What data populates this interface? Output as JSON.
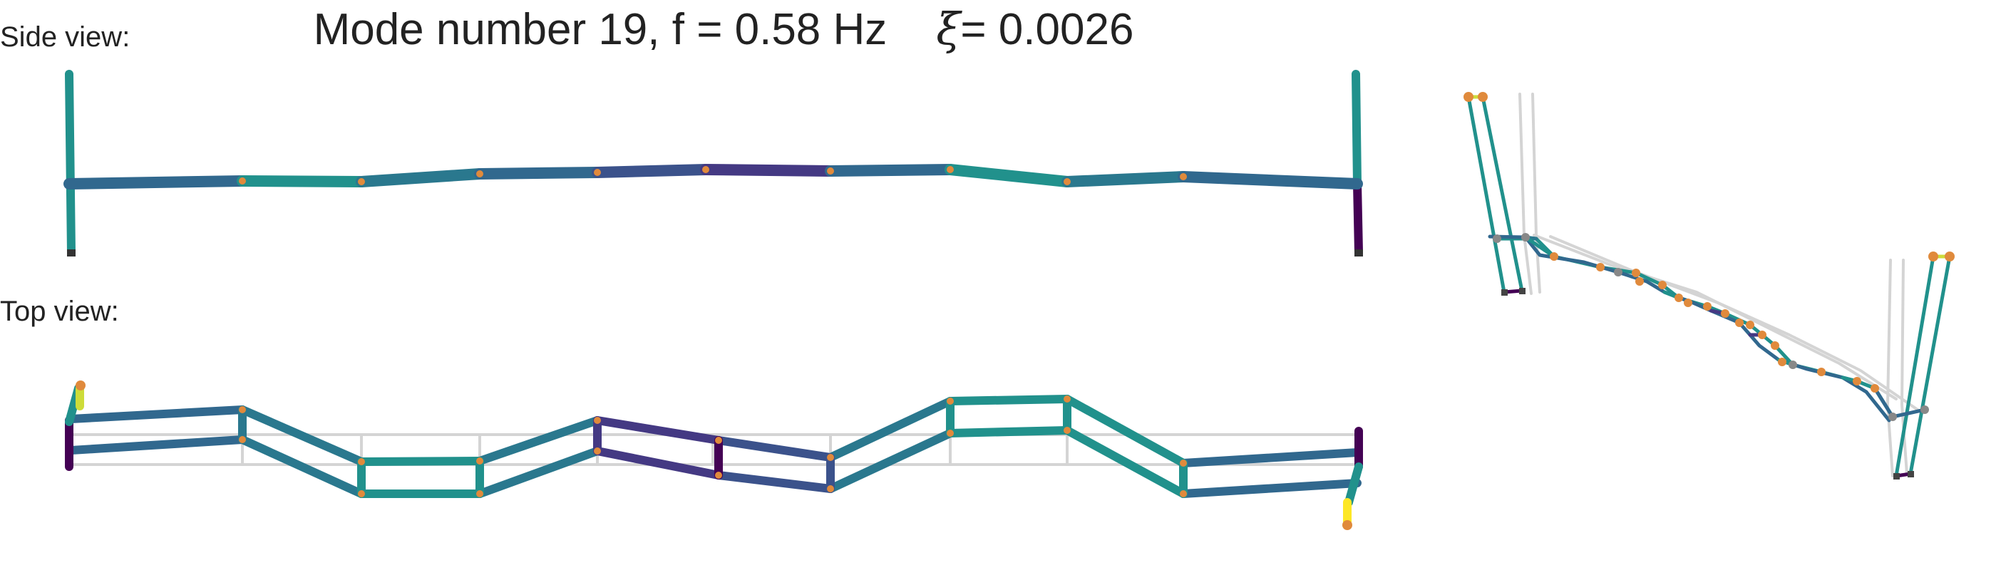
{
  "title": {
    "mode": "Mode number 19, f = 0.58 Hz",
    "xi_symbol": "ξ",
    "damping": "= 0.0026"
  },
  "labels": {
    "side": "Side view:",
    "top": "Top view:"
  },
  "colors": {
    "teal": "#21918c",
    "blue": "#31688e",
    "indigo": "#443983",
    "purple": "#440154",
    "yellow": "#cddc39",
    "node": "#e08a3c",
    "ghost": "#d4d4d4",
    "support": "#555555"
  }
}
